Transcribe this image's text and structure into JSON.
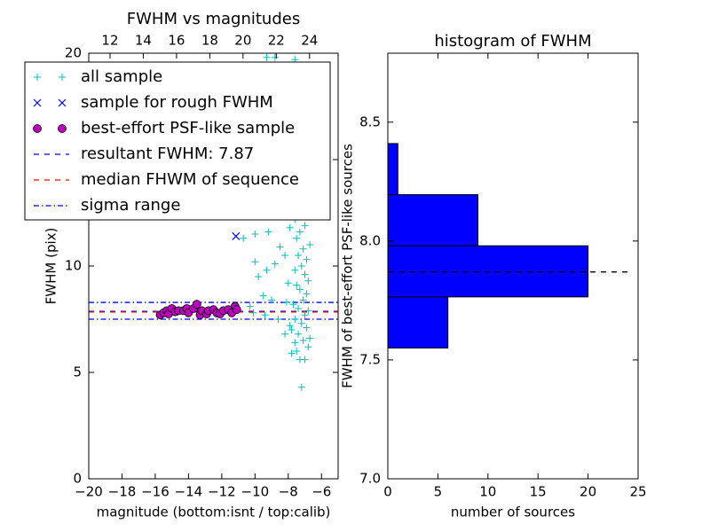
{
  "chart_data": [
    {
      "type": "scatter",
      "title": "FWHM vs magnitudes",
      "xlabel": "magnitude (bottom:isnt / top:calib)",
      "ylabel": "FWHM (pix)",
      "xlim": [
        -20,
        -5
      ],
      "xticks": [
        {
          "value": -20,
          "label": "−20"
        },
        {
          "value": -18,
          "label": "−18"
        },
        {
          "value": -16,
          "label": "−16"
        },
        {
          "value": -14,
          "label": "−14"
        },
        {
          "value": -12,
          "label": "−12"
        },
        {
          "value": -10,
          "label": "−10"
        },
        {
          "value": -8,
          "label": "−8"
        },
        {
          "value": -6,
          "label": "−6"
        }
      ],
      "x2lim": [
        10.72,
        25.72
      ],
      "x2ticks": [
        12,
        14,
        16,
        18,
        20,
        22,
        24
      ],
      "ylim": [
        0,
        20
      ],
      "yticks": [
        0,
        5,
        10,
        15,
        20
      ],
      "legend": "upper left",
      "series": [
        {
          "name": "all sample",
          "color": "#00bfbf",
          "marker": "+",
          "x": [
            -7.2,
            -7.0,
            -7.3,
            -7.5,
            -6.8,
            -7.6,
            -7.1,
            -6.7,
            -7.4,
            -7.8,
            -6.9,
            -7.2,
            -7.6,
            -7.0,
            -6.8,
            -7.4,
            -7.7,
            -7.1,
            -6.9,
            -7.3,
            -7.5,
            -6.8,
            -7.0,
            -7.6,
            -7.2,
            -6.9,
            -7.4,
            -7.1,
            -6.7,
            -7.5,
            -7.3,
            -7.0,
            -7.6,
            -7.2,
            -6.9,
            -7.4,
            -7.1,
            -7.7,
            -7.0,
            -7.3,
            -6.9,
            -7.5,
            -7.2,
            -7.0,
            -7.4,
            -7.8,
            -7.6,
            -8.8,
            -9.3,
            -8.0,
            -8.2,
            -7.9,
            -8.3,
            -8.1,
            -8.5,
            -8.8,
            -9.0,
            -9.3,
            -9.5,
            -9.0,
            -9.8,
            -10.0,
            -10.0,
            -9.2,
            -10.7,
            -10.1,
            -9.4,
            -8.6,
            -8.1,
            -10.3,
            -8.4,
            -8.0,
            -7.9,
            -8.2,
            -7.8
          ],
          "values": [
            4.3,
            5.6,
            5.6,
            6.0,
            6.2,
            6.4,
            6.5,
            6.6,
            6.8,
            7.0,
            7.1,
            7.3,
            7.5,
            7.7,
            7.9,
            8.0,
            8.2,
            8.4,
            8.7,
            8.9,
            9.1,
            9.3,
            9.6,
            9.8,
            10.0,
            10.3,
            10.5,
            10.8,
            11.0,
            11.3,
            11.6,
            11.9,
            12.2,
            12.5,
            12.8,
            13.1,
            13.4,
            13.8,
            14.2,
            14.6,
            15.0,
            15.5,
            16.0,
            16.5,
            17.0,
            17.8,
            19.7,
            19.8,
            19.8,
            9.2,
            10.5,
            11.8,
            12.4,
            13.5,
            10.9,
            10.1,
            12.6,
            9.8,
            8.6,
            8.4,
            9.5,
            10.2,
            11.5,
            11.6,
            11.3,
            7.8,
            7.7,
            7.5,
            8.3,
            8.1,
            14.8,
            15.8,
            7.2,
            6.8,
            5.9
          ]
        },
        {
          "name": "sample for rough FWHM",
          "color": "#0000ff",
          "marker": "x",
          "x": [
            -11.15
          ],
          "values": [
            11.4
          ]
        },
        {
          "name": "best-effort PSF-like sample",
          "color": "#bf00bf",
          "marker": "o",
          "x": [
            -15.7,
            -15.5,
            -15.3,
            -15.2,
            -15.0,
            -14.8,
            -14.6,
            -14.3,
            -14.1,
            -14.0,
            -13.7,
            -13.5,
            -13.3,
            -13.2,
            -12.9,
            -12.8,
            -12.5,
            -12.3,
            -12.1,
            -11.9,
            -11.6,
            -11.4,
            -11.2,
            -11.1
          ],
          "values": [
            7.7,
            7.8,
            7.9,
            7.75,
            8.0,
            7.85,
            7.9,
            7.9,
            8.0,
            7.8,
            8.0,
            8.2,
            7.7,
            7.9,
            7.75,
            7.9,
            7.95,
            7.8,
            7.75,
            7.9,
            7.95,
            7.8,
            8.1,
            7.95
          ]
        }
      ],
      "hlines": [
        {
          "name": "resultant FWHM: 7.87",
          "color": "#0000ff",
          "style": "dashed",
          "values": [
            7.87
          ]
        },
        {
          "name": "median FHWM of sequence",
          "color": "#ff0000",
          "style": "dashed",
          "values": [
            7.84
          ]
        },
        {
          "name": "sigma range",
          "color": "#0000ff",
          "style": "dashdot",
          "values": [
            7.5,
            8.29
          ]
        }
      ]
    },
    {
      "type": "histogram",
      "orientation": "horizontal",
      "title": "histogram of FWHM",
      "xlabel": "number of sources",
      "ylabel": "FWHM of best-effort PSF-like sources",
      "xlim": [
        0,
        25
      ],
      "xticks": [
        0,
        5,
        10,
        15,
        20,
        25
      ],
      "ylim": [
        7.0,
        8.79
      ],
      "yticks": [
        {
          "value": 7.0,
          "label": "7.0"
        },
        7.5,
        {
          "value": 8.0,
          "label": "8.0"
        },
        8.5
      ],
      "bins": [
        7.55,
        7.765,
        7.98,
        8.195,
        8.41
      ],
      "values": [
        6,
        20,
        9,
        1
      ],
      "color": "#0000ff",
      "hlines": [
        {
          "color": "#000000",
          "style": "dashed",
          "values": [
            7.87
          ],
          "x": [
            0,
            24.2
          ]
        }
      ]
    }
  ]
}
